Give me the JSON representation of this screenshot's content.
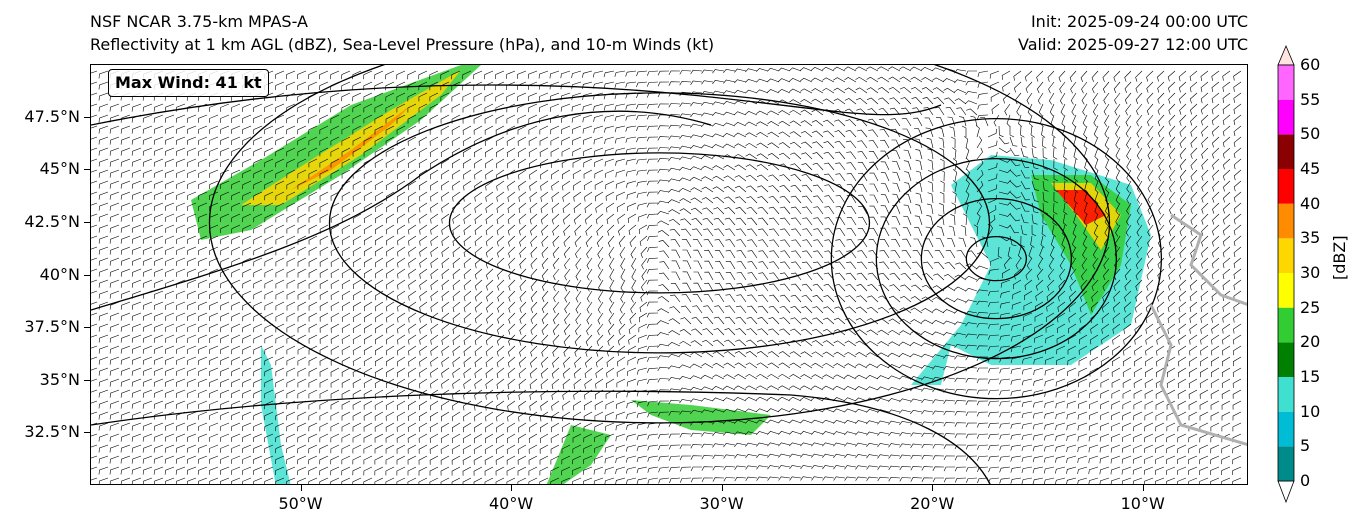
{
  "header": {
    "left_line1": "NSF NCAR 3.75-km MPAS-A",
    "left_line2": "Reflectivity at 1 km AGL (dBZ), Sea-Level Pressure (hPa), and 10-m Winds (kt)",
    "right_line1": "Init: 2025-09-24 00:00 UTC",
    "right_line2": "Valid: 2025-09-27 12:00 UTC"
  },
  "annotation": {
    "max_wind": "Max Wind: 41 kt"
  },
  "map": {
    "lon_range": [
      -60,
      -5
    ],
    "lat_range": [
      30,
      50
    ],
    "lat_ticks": [
      {
        "label": "47.5°N",
        "value": 47.5
      },
      {
        "label": "45°N",
        "value": 45
      },
      {
        "label": "42.5°N",
        "value": 42.5
      },
      {
        "label": "40°N",
        "value": 40
      },
      {
        "label": "37.5°N",
        "value": 37.5
      },
      {
        "label": "35°N",
        "value": 35
      },
      {
        "label": "32.5°N",
        "value": 32.5
      }
    ],
    "lon_ticks": [
      {
        "label": "50°W",
        "value": -50
      },
      {
        "label": "40°W",
        "value": -40
      },
      {
        "label": "30°W",
        "value": -30
      },
      {
        "label": "20°W",
        "value": -20
      },
      {
        "label": "10°W",
        "value": -10
      }
    ],
    "features": {
      "high_center": {
        "lon": -33,
        "lat": 42.5
      },
      "low_center": {
        "lon": -17,
        "lat": 40.8
      }
    }
  },
  "colorbar": {
    "title": "[dBZ]",
    "ticks": [
      "0",
      "5",
      "10",
      "15",
      "20",
      "25",
      "30",
      "35",
      "40",
      "45",
      "50",
      "55",
      "60"
    ],
    "colors": [
      "#ffffff",
      "#008b8b",
      "#00bcd4",
      "#40e0d0",
      "#008000",
      "#32cd32",
      "#ffff00",
      "#ffd700",
      "#ff8c00",
      "#ff0000",
      "#8b0000",
      "#ff00ff",
      "#ff66ff",
      "#ffe4e1"
    ],
    "extend": "both"
  }
}
